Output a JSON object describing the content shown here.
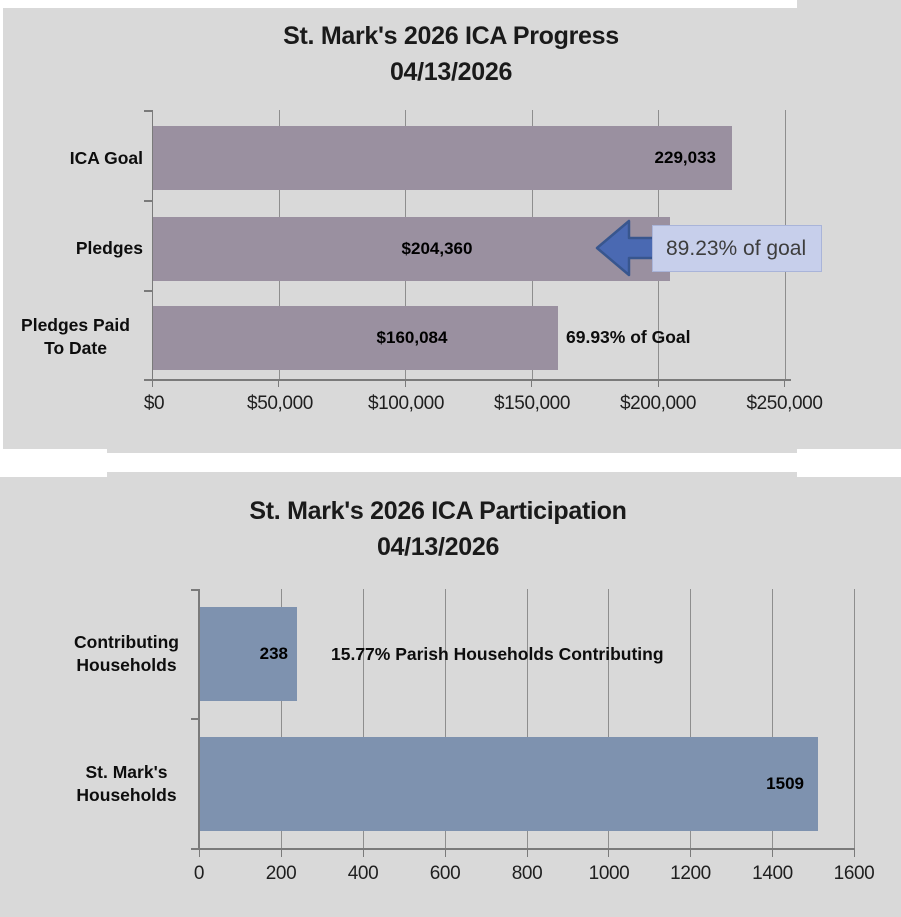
{
  "colors": {
    "chart_background": "#d9d9d9",
    "progress_bar_color": "#9a90a0",
    "participation_bar_color": "#7e92af",
    "arrow_fill": "#4a69b2",
    "arrow_border": "#38568e",
    "callout_background": "#c7cfeb",
    "gridline": "#8e8e8e"
  },
  "chart_data": [
    {
      "type": "bar",
      "orientation": "horizontal",
      "title": "St. Mark's 2026 ICA Progress",
      "subtitle": "04/13/2026",
      "categories": [
        "ICA Goal",
        "Pledges",
        "Pledges Paid To Date"
      ],
      "category_lines": [
        [
          "ICA Goal"
        ],
        [
          "Pledges"
        ],
        [
          "Pledges Paid",
          "To Date"
        ]
      ],
      "values": [
        229033,
        204360,
        160084
      ],
      "data_labels": [
        "229,033",
        "$204,360",
        "$160,084"
      ],
      "callout": "89.23% of goal",
      "annotation": "69.93% of Goal",
      "x_ticks": [
        "$0",
        "$50,000",
        "$100,000",
        "$150,000",
        "$200,000",
        "$250,000"
      ],
      "xlim": [
        0,
        250000
      ],
      "grid": true,
      "legend": false
    },
    {
      "type": "bar",
      "orientation": "horizontal",
      "title": "St. Mark's 2026 ICA Participation",
      "subtitle": "04/13/2026",
      "categories": [
        "Contributing Households",
        "St. Mark's Households"
      ],
      "category_lines": [
        [
          "Contributing",
          "Households"
        ],
        [
          "St. Mark's",
          "Households"
        ]
      ],
      "values": [
        238,
        1509
      ],
      "data_labels": [
        "238",
        "1509"
      ],
      "annotation": "15.77% Parish Households Contributing",
      "x_ticks": [
        "0",
        "200",
        "400",
        "600",
        "800",
        "1000",
        "1200",
        "1400",
        "1600"
      ],
      "xlim": [
        0,
        1600
      ],
      "grid": true,
      "legend": false
    }
  ]
}
